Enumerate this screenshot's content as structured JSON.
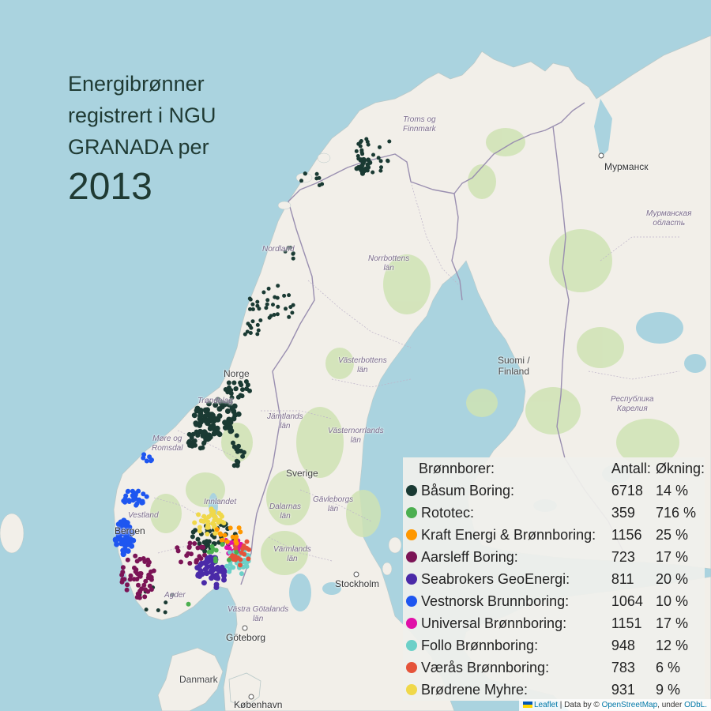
{
  "title": {
    "line1": "Energibrønner",
    "line2": "registrert i NGU",
    "line3": "GRANADA per",
    "year": "2013"
  },
  "map_labels": {
    "murmansk": "Мурманск",
    "troms": "Troms og\nFinnmark",
    "murmansk_oblast": "Мурманская\nобласть",
    "norrbotten": "Norrbottens\nlän",
    "nordland": "Nordland",
    "suomi": "Suomi /\nFinland",
    "vasterbotten": "Västerbottens\nlän",
    "karelia": "Республика\nКарелия",
    "norge": "Norge",
    "trondelag": "Trøndelag",
    "jamtland": "Jämtlands\nlän",
    "more": "Møre og\nRomsdal",
    "vasternorrland": "Västernorrlands\nlän",
    "sverige": "Sverige",
    "innlandet": "Innlandet",
    "dalarnas": "Dalarnas\nlän",
    "gavleborg": "Gävleborgs\nlän",
    "vestland": "Vestland",
    "bergen": "Bergen",
    "varmlands": "Värmlands\nlän",
    "stockholm": "Stockholm",
    "agder": "Agder",
    "vastra_gotaland": "Västra Götalands\nlän",
    "goteborg": "Göteborg",
    "danmark": "Danmark",
    "kobenhavn": "København"
  },
  "legend": {
    "header_name": "Brønnborer:",
    "header_count": "Antall:",
    "header_growth": "Økning:",
    "items": [
      {
        "name": "Båsum Boring:",
        "count": "6718",
        "growth": "14 %",
        "color": "#1a3a33"
      },
      {
        "name": "Rototec:",
        "count": "359",
        "growth": "716 %",
        "color": "#4caf50"
      },
      {
        "name": "Kraft Energi & Brønnboring:",
        "count": "1156",
        "growth": "25 %",
        "color": "#ff9800"
      },
      {
        "name": "Aarsleff Boring:",
        "count": "723",
        "growth": "17 %",
        "color": "#7b1456"
      },
      {
        "name": "Seabrokers GeoEnergi:",
        "count": "811",
        "growth": "20 %",
        "color": "#4a2aa8"
      },
      {
        "name": "Vestnorsk Brunnboring:",
        "count": "1064",
        "growth": "10 %",
        "color": "#1e56f0"
      },
      {
        "name": "Universal Brønnboring:",
        "count": "1151",
        "growth": "17 %",
        "color": "#e010a8"
      },
      {
        "name": "Follo Brønnboring:",
        "count": "948",
        "growth": "12 %",
        "color": "#6cd0c8"
      },
      {
        "name": "Værås Brønnboring:",
        "count": "783",
        "growth": "6 %",
        "color": "#e5533a"
      },
      {
        "name": "Brødrene Myhre:",
        "count": "931",
        "growth": "9 %",
        "color": "#f0d84a"
      }
    ]
  },
  "attribution": {
    "leaflet": "Leaflet",
    "sep": " | Data by © ",
    "osm": "OpenStreetMap",
    "under": ", under ",
    "odbl": "ODbL."
  },
  "colors": {
    "sea": "#aad3df",
    "land": "#f2efe9",
    "forest": "#cfe3b4",
    "border": "#9a8fb0"
  }
}
